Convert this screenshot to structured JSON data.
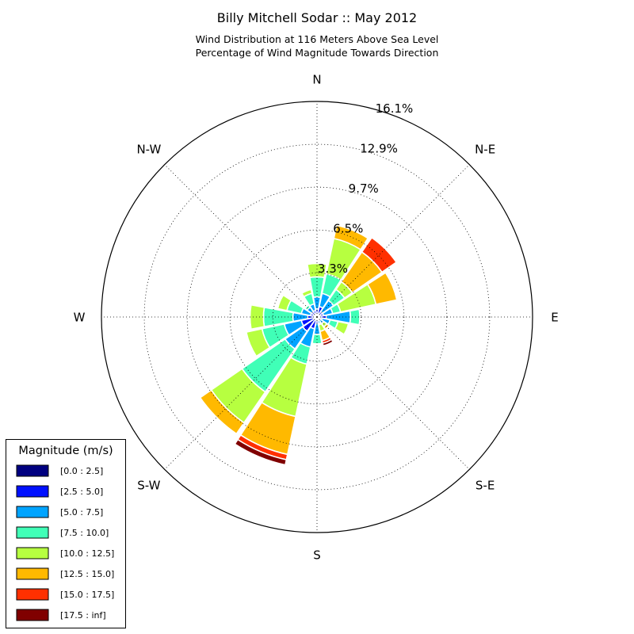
{
  "chart_data": {
    "type": "windrose",
    "title": "Billy Mitchell Sodar :: May 2012",
    "subtitle_lines": [
      "Wind Distribution at 116 Meters Above Sea Level",
      "Percentage of Wind Magnitude Towards Direction"
    ],
    "direction_labels": [
      "N",
      "N-E",
      "E",
      "S-E",
      "S",
      "S-W",
      "W",
      "N-W"
    ],
    "radial_tick_labels": [
      "3.3%",
      "6.5%",
      "9.7%",
      "12.9%",
      "16.1%"
    ],
    "radial_ticks": [
      3.3,
      6.5,
      9.7,
      12.9,
      16.1
    ],
    "rmax": 16.1,
    "grid": true,
    "legend_position": "bottom-left",
    "legend": {
      "title": "Magnitude (m/s)",
      "bins": [
        "[0.0 : 2.5]",
        "[2.5 : 5.0]",
        "[5.0 : 7.5]",
        "[7.5 : 10.0]",
        "[10.0 : 12.5]",
        "[12.5 : 15.0]",
        "[15.0 : 17.5]",
        "[17.5 : inf]"
      ],
      "colors": [
        "#000080",
        "#0010ff",
        "#00a4ff",
        "#40ffb7",
        "#b7ff40",
        "#ffb900",
        "#ff3000",
        "#800000"
      ]
    },
    "sector_directions_deg": [
      0,
      22.5,
      45,
      67.5,
      90,
      112.5,
      135,
      157.5,
      180,
      202.5,
      225,
      247.5,
      270,
      292.5,
      315,
      337.5
    ],
    "cumulative_percent": [
      [
        0.1,
        0.6,
        1.5,
        3.0,
        4.0,
        4.0,
        4.0,
        4.0
      ],
      [
        0.1,
        0.8,
        1.8,
        3.3,
        6.0,
        7.0,
        7.0,
        7.0
      ],
      [
        0.1,
        0.5,
        1.5,
        2.5,
        3.2,
        5.9,
        7.2,
        7.2
      ],
      [
        0.1,
        0.5,
        1.2,
        1.8,
        4.5,
        6.1,
        6.1,
        6.1
      ],
      [
        0.1,
        0.7,
        2.5,
        3.2,
        3.2,
        3.2,
        3.2,
        3.2
      ],
      [
        0.1,
        0.4,
        1.0,
        1.6,
        2.4,
        2.4,
        2.4,
        2.4
      ],
      [
        0.1,
        0.3,
        0.6,
        0.6,
        0.9,
        1.1,
        1.2,
        1.2
      ],
      [
        0.1,
        0.3,
        0.5,
        0.6,
        1.1,
        1.8,
        2.0,
        2.2
      ],
      [
        0.1,
        0.5,
        1.3,
        2.0,
        2.0,
        2.0,
        2.0,
        2.0
      ],
      [
        0.2,
        0.9,
        2.3,
        3.6,
        7.6,
        10.5,
        10.9,
        11.3
      ],
      [
        0.2,
        1.3,
        2.9,
        6.8,
        9.6,
        10.6,
        10.6,
        10.6
      ],
      [
        0.1,
        1.2,
        2.5,
        4.2,
        5.4,
        5.4,
        5.4,
        5.4
      ],
      [
        0.1,
        0.7,
        1.8,
        4.0,
        5.0,
        5.0,
        5.0,
        5.0
      ],
      [
        0.1,
        0.5,
        1.2,
        2.3,
        3.0,
        3.0,
        3.0,
        3.0
      ],
      [
        0.1,
        0.5,
        0.9,
        1.1,
        1.2,
        1.2,
        1.2,
        1.2
      ],
      [
        0.1,
        0.5,
        1.0,
        1.8,
        2.1,
        2.1,
        2.1,
        2.1
      ]
    ]
  }
}
